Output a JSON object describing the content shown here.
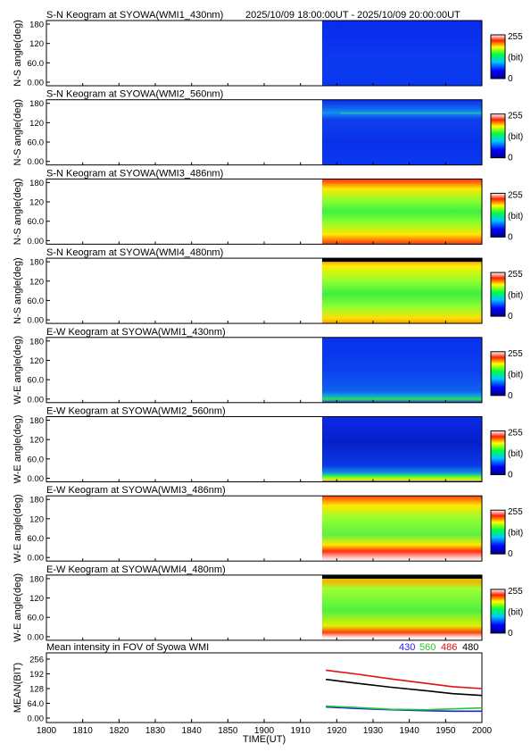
{
  "time_range": "2025/10/09 18:00:00UT - 2025/10/09 20:00:00UT",
  "colors": {
    "430": "#1a1aff",
    "560": "#22cc22",
    "486": "#e01010",
    "480": "#000000"
  },
  "panels": [
    {
      "title": "S-N Keogram at SYOWA(WMI1_430nm)",
      "ylabel": "N-S angle(deg)",
      "pattern": "blue-uniform"
    },
    {
      "title": "S-N Keogram at SYOWA(WMI2_560nm)",
      "ylabel": "N-S angle(deg)",
      "pattern": "blue-top-aurora"
    },
    {
      "title": "S-N Keogram at SYOWA(WMI3_486nm)",
      "ylabel": "N-S angle(deg)",
      "pattern": "red-yellow-symmetric"
    },
    {
      "title": "S-N Keogram at SYOWA(WMI4_480nm)",
      "ylabel": "N-S angle(deg)",
      "pattern": "yellow-green-symmetric"
    },
    {
      "title": "E-W Keogram at SYOWA(WMI1_430nm)",
      "ylabel": "W-E angle(deg)",
      "pattern": "blue-green-bottom"
    },
    {
      "title": "E-W Keogram at SYOWA(WMI2_560nm)",
      "ylabel": "W-E angle(deg)",
      "pattern": "blue-dark-center"
    },
    {
      "title": "E-W Keogram at SYOWA(WMI3_486nm)",
      "ylabel": "W-E angle(deg)",
      "pattern": "red-asymmetric"
    },
    {
      "title": "E-W Keogram at SYOWA(WMI4_480nm)",
      "ylabel": "W-E angle(deg)",
      "pattern": "yellow-green-asymmetric"
    }
  ],
  "keogram_yticks": [
    "180",
    "120",
    "60.0",
    "0.00"
  ],
  "colorbar": {
    "max": "255",
    "unit": "(bit)",
    "min": "0"
  },
  "chart_data": {
    "type": "line",
    "title": "Mean intensity in FOV of Syowa WMI",
    "xlabel": "TIME(UT)",
    "ylabel": "MEAN(BIT)",
    "xlim": [
      1800,
      2000
    ],
    "ylim": [
      0,
      256
    ],
    "xticks": [
      "1800",
      "1810",
      "1820",
      "1830",
      "1840",
      "1850",
      "1900",
      "1910",
      "1920",
      "1930",
      "1940",
      "1950",
      "2000"
    ],
    "yticks": [
      "256",
      "192",
      "128",
      "64.0",
      "0.00"
    ],
    "x_minutes": [
      0,
      20,
      40,
      60,
      80,
      100,
      120
    ],
    "data_start_minute": 77,
    "legend": [
      "430",
      "560",
      "486",
      "480"
    ],
    "series": [
      {
        "name": "430",
        "color": "#1a1aff",
        "points": [
          [
            77,
            48
          ],
          [
            85,
            42
          ],
          [
            95,
            36
          ],
          [
            105,
            32
          ],
          [
            112,
            30
          ],
          [
            120,
            30
          ]
        ]
      },
      {
        "name": "560",
        "color": "#22cc22",
        "points": [
          [
            77,
            52
          ],
          [
            85,
            46
          ],
          [
            95,
            38
          ],
          [
            105,
            36
          ],
          [
            112,
            40
          ],
          [
            120,
            44
          ]
        ]
      },
      {
        "name": "486",
        "color": "#e01010",
        "points": [
          [
            77,
            208
          ],
          [
            85,
            192
          ],
          [
            95,
            170
          ],
          [
            105,
            150
          ],
          [
            112,
            136
          ],
          [
            120,
            128
          ]
        ]
      },
      {
        "name": "480",
        "color": "#000000",
        "points": [
          [
            77,
            168
          ],
          [
            85,
            152
          ],
          [
            95,
            134
          ],
          [
            105,
            118
          ],
          [
            112,
            106
          ],
          [
            120,
            98
          ]
        ]
      }
    ]
  }
}
